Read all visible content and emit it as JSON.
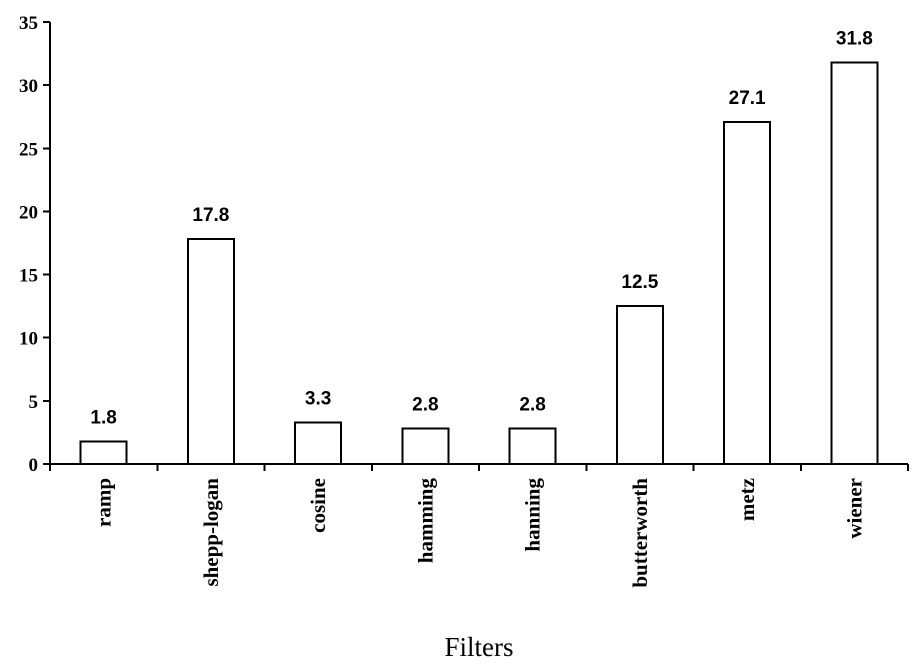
{
  "chart_data": {
    "type": "bar",
    "title": "",
    "xlabel": "Filters",
    "ylabel": "",
    "categories": [
      "ramp",
      "shepp-logan",
      "cosine",
      "hamming",
      "hanning",
      "butterworth",
      "metz",
      "wiener"
    ],
    "values": [
      1.8,
      17.8,
      3.3,
      2.8,
      2.8,
      12.5,
      27.1,
      31.8
    ],
    "data_labels": [
      "1.8",
      "17.8",
      "3.3",
      "2.8",
      "2.8",
      "12.5",
      "27.1",
      "31.8"
    ],
    "ylim": [
      0,
      35
    ],
    "yticks": [
      0,
      5,
      10,
      15,
      20,
      25,
      30,
      35
    ],
    "ytick_labels": [
      "0",
      "5",
      "10",
      "15",
      "20",
      "25",
      "30",
      "35"
    ],
    "grid": false,
    "legend": "none",
    "bar_fill": "#ffffff",
    "bar_stroke": "#000000"
  }
}
